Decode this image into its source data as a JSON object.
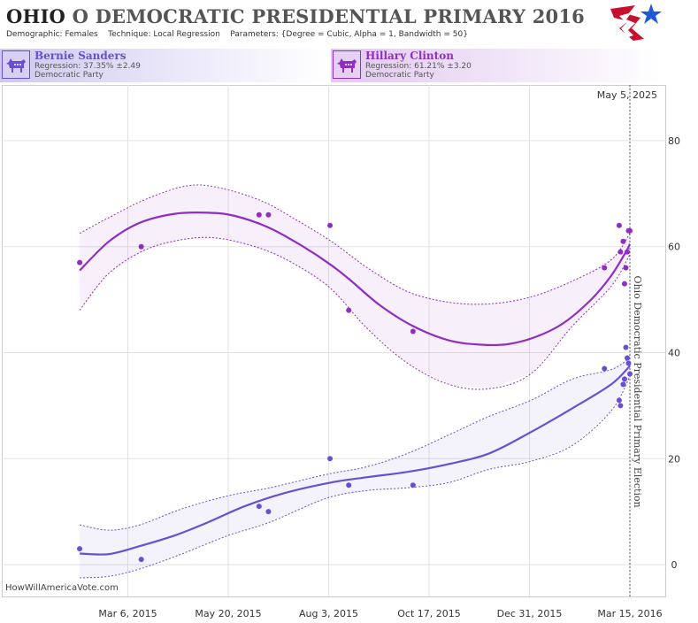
{
  "header": {
    "state": "OHIO",
    "title_rest": "O DEMOCRATIC PRESIDENTIAL PRIMARY 2016",
    "demographic_label": "Demographic:",
    "demographic_value": "Females",
    "technique_label": "Technique:",
    "technique_value": "Local Regression",
    "parameters_label": "Parameters:",
    "parameters_value": "{Degree = Cubic, Alpha = 1, Bandwidth = 50}"
  },
  "logo_icon": "star-flag-logo-icon",
  "candidates": [
    {
      "name": "Bernie Sanders",
      "regression": "Regression: 37.35% ±2.49",
      "party": "Democratic Party",
      "color": "#6a4fd0",
      "icon": "donkey-icon"
    },
    {
      "name": "Hillary Clinton",
      "regression": "Regression: 61.21% ±3.20",
      "party": "Democratic Party",
      "color": "#8e2fc0",
      "icon": "donkey-icon"
    }
  ],
  "chart_data": {
    "type": "line",
    "xlabel": "",
    "ylabel": "",
    "ylim": [
      -6,
      89
    ],
    "y_ticks": [
      0,
      20,
      40,
      60,
      80
    ],
    "x_ticks": [
      "Mar 6, 2015",
      "May 20, 2015",
      "Aug 3, 2015",
      "Oct 17, 2015",
      "Dec 31, 2015",
      "Mar 15, 2016"
    ],
    "x_tick_dates": [
      "2015-03-06",
      "2015-05-20",
      "2015-08-03",
      "2015-10-17",
      "2015-12-31",
      "2016-03-15"
    ],
    "xlim": [
      "2015-01-25",
      "2016-03-15"
    ],
    "grid": true,
    "current_date_label": "May 5, 2025",
    "event_line_label": "Ohio Democratic Presidential Primary Election",
    "event_date": "2016-03-15",
    "watermark": "HowWillAmericaVote.com",
    "series": [
      {
        "name": "Hillary Clinton",
        "color": "#8e2fc0",
        "trend": [
          [
            "2015-01-29",
            55.5
          ],
          [
            "2015-02-20",
            61
          ],
          [
            "2015-03-15",
            64.5
          ],
          [
            "2015-04-10",
            66.2
          ],
          [
            "2015-05-05",
            66.4
          ],
          [
            "2015-05-25",
            65.8
          ],
          [
            "2015-06-20",
            63.5
          ],
          [
            "2015-07-15",
            60
          ],
          [
            "2015-08-05",
            56.5
          ],
          [
            "2015-08-20",
            53.5
          ],
          [
            "2015-09-10",
            49
          ],
          [
            "2015-10-05",
            45
          ],
          [
            "2015-11-01",
            42.3
          ],
          [
            "2015-11-25",
            41.5
          ],
          [
            "2015-12-15",
            41.6
          ],
          [
            "2016-01-05",
            43
          ],
          [
            "2016-01-25",
            45.5
          ],
          [
            "2016-02-15",
            50
          ],
          [
            "2016-03-01",
            54.5
          ],
          [
            "2016-03-12",
            59
          ],
          [
            "2016-03-15",
            60.5
          ]
        ],
        "upper": [
          [
            "2015-01-29",
            62.5
          ],
          [
            "2015-02-20",
            65.5
          ],
          [
            "2015-03-20",
            69
          ],
          [
            "2015-04-20",
            71.5
          ],
          [
            "2015-05-15",
            71
          ],
          [
            "2015-06-15",
            68.5
          ],
          [
            "2015-07-10",
            65
          ],
          [
            "2015-08-05",
            61
          ],
          [
            "2015-09-01",
            56
          ],
          [
            "2015-10-01",
            51.5
          ],
          [
            "2015-11-01",
            49.5
          ],
          [
            "2015-12-01",
            49.2
          ],
          [
            "2016-01-01",
            50.5
          ],
          [
            "2016-02-01",
            53.5
          ],
          [
            "2016-03-01",
            57.5
          ],
          [
            "2016-03-15",
            62.5
          ]
        ],
        "lower": [
          [
            "2015-01-29",
            48
          ],
          [
            "2015-02-20",
            55
          ],
          [
            "2015-03-20",
            59.5
          ],
          [
            "2015-04-20",
            61.5
          ],
          [
            "2015-05-15",
            61.5
          ],
          [
            "2015-06-15",
            59.5
          ],
          [
            "2015-07-10",
            56.5
          ],
          [
            "2015-08-05",
            52
          ],
          [
            "2015-09-01",
            44.5
          ],
          [
            "2015-10-01",
            38
          ],
          [
            "2015-11-01",
            34
          ],
          [
            "2015-12-01",
            33.2
          ],
          [
            "2016-01-01",
            36
          ],
          [
            "2016-02-01",
            45
          ],
          [
            "2016-03-01",
            52.5
          ],
          [
            "2016-03-15",
            58.5
          ]
        ],
        "points": [
          [
            "2015-01-29",
            57
          ],
          [
            "2015-03-16",
            60
          ],
          [
            "2015-06-12",
            66
          ],
          [
            "2015-06-19",
            66
          ],
          [
            "2015-08-04",
            64
          ],
          [
            "2015-08-18",
            48
          ],
          [
            "2015-10-05",
            44
          ],
          [
            "2016-02-25",
            56
          ],
          [
            "2016-03-07",
            64
          ],
          [
            "2016-03-08",
            59
          ],
          [
            "2016-03-10",
            61
          ],
          [
            "2016-03-11",
            53
          ],
          [
            "2016-03-12",
            56
          ],
          [
            "2016-03-13",
            59
          ],
          [
            "2016-03-14",
            63
          ],
          [
            "2016-03-15",
            63
          ]
        ]
      },
      {
        "name": "Bernie Sanders",
        "color": "#6a4fd0",
        "trend": [
          [
            "2015-01-29",
            2.1
          ],
          [
            "2015-02-20",
            2
          ],
          [
            "2015-03-15",
            3.5
          ],
          [
            "2015-04-10",
            5.5
          ],
          [
            "2015-05-05",
            8
          ],
          [
            "2015-06-01",
            11
          ],
          [
            "2015-07-01",
            13.5
          ],
          [
            "2015-08-05",
            15.5
          ],
          [
            "2015-09-01",
            16.5
          ],
          [
            "2015-10-01",
            17.5
          ],
          [
            "2015-11-01",
            19
          ],
          [
            "2015-12-01",
            21
          ],
          [
            "2016-01-01",
            25
          ],
          [
            "2016-02-01",
            29.5
          ],
          [
            "2016-03-01",
            34
          ],
          [
            "2016-03-15",
            37.5
          ]
        ],
        "upper": [
          [
            "2015-01-29",
            7.5
          ],
          [
            "2015-02-20",
            6.5
          ],
          [
            "2015-03-15",
            7.5
          ],
          [
            "2015-04-15",
            10.5
          ],
          [
            "2015-05-20",
            13
          ],
          [
            "2015-06-20",
            14.5
          ],
          [
            "2015-08-01",
            17
          ],
          [
            "2015-09-01",
            18.5
          ],
          [
            "2015-10-01",
            21
          ],
          [
            "2015-11-01",
            24.5
          ],
          [
            "2015-12-01",
            28
          ],
          [
            "2016-01-01",
            31
          ],
          [
            "2016-02-01",
            35
          ],
          [
            "2016-03-01",
            36.8
          ],
          [
            "2016-03-15",
            39
          ]
        ],
        "lower": [
          [
            "2015-01-29",
            -2.5
          ],
          [
            "2015-02-20",
            -2.2
          ],
          [
            "2015-03-15",
            -0.8
          ],
          [
            "2015-04-15",
            2
          ],
          [
            "2015-05-20",
            5.5
          ],
          [
            "2015-06-20",
            8
          ],
          [
            "2015-08-01",
            12.5
          ],
          [
            "2015-09-01",
            14
          ],
          [
            "2015-10-01",
            14.5
          ],
          [
            "2015-11-01",
            15.5
          ],
          [
            "2015-12-01",
            18
          ],
          [
            "2016-01-01",
            19.5
          ],
          [
            "2016-02-01",
            22.5
          ],
          [
            "2016-03-01",
            29
          ],
          [
            "2016-03-15",
            35.5
          ]
        ],
        "points": [
          [
            "2015-01-29",
            3
          ],
          [
            "2015-03-16",
            1
          ],
          [
            "2015-06-12",
            11
          ],
          [
            "2015-06-19",
            10
          ],
          [
            "2015-08-04",
            20
          ],
          [
            "2015-08-18",
            15
          ],
          [
            "2015-10-05",
            15
          ],
          [
            "2016-02-25",
            37
          ],
          [
            "2016-03-07",
            31
          ],
          [
            "2016-03-08",
            30
          ],
          [
            "2016-03-10",
            34
          ],
          [
            "2016-03-11",
            35
          ],
          [
            "2016-03-12",
            41
          ],
          [
            "2016-03-13",
            39
          ],
          [
            "2016-03-14",
            38
          ],
          [
            "2016-03-15",
            36
          ]
        ]
      }
    ]
  }
}
